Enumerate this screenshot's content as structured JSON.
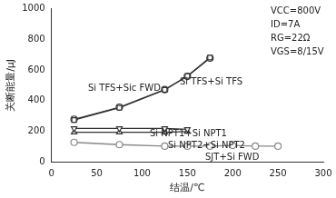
{
  "chart_data": {
    "type": "line",
    "x_label": "结温/℃",
    "y_label": "关断能量/μJ",
    "xlim": [
      0,
      300
    ],
    "xticks": [
      0,
      50,
      100,
      150,
      200,
      250,
      300
    ],
    "ylim": [
      0,
      1000
    ],
    "yticks": [
      0,
      200,
      400,
      600,
      800,
      1000
    ],
    "grid": false,
    "annotations": [
      "VCC=800V",
      "ID=7A",
      "RG=22Ω",
      "VGS=8/15V"
    ],
    "series": [
      {
        "name": "Si TFS+Sic FWD",
        "color": "#333333",
        "marker": "square",
        "x": [
          25,
          75,
          125,
          150,
          175
        ],
        "values": [
          275,
          355,
          470,
          560,
          680
        ]
      },
      {
        "name": "Si TFS+Si TFS",
        "color": "#333333",
        "marker": "circle",
        "x": [
          25,
          75,
          125,
          150,
          175
        ],
        "values": [
          280,
          358,
          472,
          558,
          676
        ]
      },
      {
        "name": "Si NPT1+Si NPT1",
        "color": "#333333",
        "marker": "triangle-down",
        "x": [
          25,
          75,
          125,
          150
        ],
        "values": [
          220,
          220,
          220,
          215
        ]
      },
      {
        "name": "Si NPT2+Si NPT2",
        "color": "#333333",
        "marker": "triangle",
        "x": [
          25,
          75,
          125,
          150
        ],
        "values": [
          195,
          195,
          195,
          200
        ]
      },
      {
        "name": "SJT+Si FWD",
        "color": "#888888",
        "marker": "circle",
        "x": [
          25,
          75,
          125,
          150,
          175,
          200,
          225,
          250
        ],
        "values": [
          130,
          115,
          105,
          105,
          105,
          110,
          105,
          105
        ]
      }
    ]
  }
}
